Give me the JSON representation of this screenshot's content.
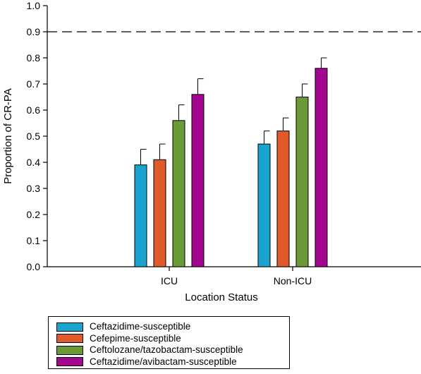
{
  "chart_data": {
    "type": "bar",
    "xlabel": "Location Status",
    "ylabel": "Proportion of CR-PA",
    "ylim": [
      0,
      1.0
    ],
    "yticks": [
      "0.0",
      "0.1",
      "0.2",
      "0.3",
      "0.4",
      "0.5",
      "0.6",
      "0.7",
      "0.8",
      "0.9",
      "1.0"
    ],
    "reference_line": {
      "y": 0.9,
      "style": "dashed"
    },
    "categories": [
      "ICU",
      "Non-ICU"
    ],
    "series": [
      {
        "name": "Ceftazidime-susceptible",
        "color": "#1ba3cf",
        "values": [
          0.39,
          0.47
        ],
        "error_upper": [
          0.45,
          0.52
        ]
      },
      {
        "name": "Cefepime-susceptible",
        "color": "#e05a2b",
        "values": [
          0.41,
          0.52
        ],
        "error_upper": [
          0.47,
          0.57
        ]
      },
      {
        "name": "Ceftolozane/tazobactam-susceptible",
        "color": "#6a9a35",
        "values": [
          0.56,
          0.65
        ],
        "error_upper": [
          0.62,
          0.7
        ]
      },
      {
        "name": "Ceftazidime/avibactam-susceptible",
        "color": "#a3078f",
        "values": [
          0.66,
          0.76
        ],
        "error_upper": [
          0.72,
          0.8
        ]
      }
    ],
    "legend_position": "bottom-left",
    "grid": false
  }
}
